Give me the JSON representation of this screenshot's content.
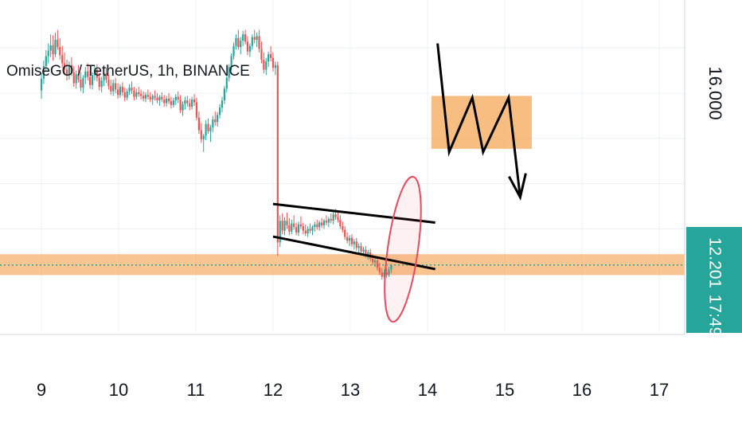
{
  "chart_data": {
    "type": "candlestick",
    "title": "OmiseGO / TetherUS, 1h, BINANCE",
    "x_ticks": [
      "9",
      "10",
      "11",
      "12",
      "13",
      "14",
      "15",
      "16",
      "17"
    ],
    "y_ticks": [
      "16.000"
    ],
    "x_range": [
      8.5,
      17.5
    ],
    "y_range": [
      11.0,
      17.4
    ],
    "last_price": "12.201",
    "countdown": "17:49",
    "colors": {
      "up": "#26a69a",
      "down": "#ef5350",
      "zone": "#f7b26b",
      "badge": "#26a69a",
      "ellipse": "#e84a5f",
      "lines": "#000000"
    },
    "candles": [
      [
        9.0,
        16.06,
        16.45,
        15.88,
        16.32
      ],
      [
        9.03,
        16.32,
        16.72,
        16.2,
        16.6
      ],
      [
        9.06,
        16.6,
        16.95,
        16.48,
        16.82
      ],
      [
        9.09,
        16.82,
        17.1,
        16.66,
        16.94
      ],
      [
        9.12,
        16.94,
        17.3,
        16.8,
        17.06
      ],
      [
        9.15,
        17.06,
        17.28,
        16.72,
        16.86
      ],
      [
        9.18,
        16.86,
        17.34,
        16.8,
        17.18
      ],
      [
        9.21,
        17.18,
        17.4,
        16.96,
        17.02
      ],
      [
        9.24,
        17.02,
        17.22,
        16.74,
        16.84
      ],
      [
        9.27,
        16.84,
        17.05,
        16.56,
        16.66
      ],
      [
        9.3,
        16.66,
        16.9,
        16.4,
        16.52
      ],
      [
        9.33,
        16.52,
        16.74,
        16.28,
        16.4
      ],
      [
        9.36,
        16.4,
        16.7,
        16.3,
        16.62
      ],
      [
        9.39,
        16.62,
        16.8,
        16.38,
        16.46
      ],
      [
        9.42,
        16.46,
        16.6,
        16.14,
        16.22
      ],
      [
        9.45,
        16.22,
        16.5,
        16.1,
        16.42
      ],
      [
        9.48,
        16.42,
        16.62,
        16.24,
        16.3
      ],
      [
        9.51,
        16.3,
        16.46,
        16.04,
        16.12
      ],
      [
        9.54,
        16.12,
        16.4,
        16.0,
        16.34
      ],
      [
        9.57,
        16.34,
        16.58,
        16.2,
        16.48
      ],
      [
        9.6,
        16.48,
        16.66,
        16.28,
        16.36
      ],
      [
        9.63,
        16.36,
        16.5,
        16.1,
        16.18
      ],
      [
        9.66,
        16.18,
        16.46,
        16.08,
        16.4
      ],
      [
        9.69,
        16.4,
        16.6,
        16.28,
        16.52
      ],
      [
        9.72,
        16.52,
        16.64,
        16.26,
        16.34
      ],
      [
        9.75,
        16.34,
        16.44,
        16.06,
        16.14
      ],
      [
        9.78,
        16.14,
        16.36,
        16.02,
        16.28
      ],
      [
        9.81,
        16.28,
        16.52,
        16.16,
        16.44
      ],
      [
        9.84,
        16.44,
        16.56,
        16.22,
        16.3
      ],
      [
        9.87,
        16.3,
        16.4,
        16.08,
        16.16
      ],
      [
        9.9,
        16.16,
        16.3,
        15.96,
        16.04
      ],
      [
        9.93,
        16.04,
        16.3,
        15.94,
        16.22
      ],
      [
        9.96,
        16.22,
        16.34,
        16.0,
        16.08
      ],
      [
        9.99,
        16.08,
        16.22,
        15.88,
        15.96
      ],
      [
        10.02,
        15.96,
        16.2,
        15.9,
        16.14
      ],
      [
        10.05,
        16.14,
        16.24,
        15.94,
        16.02
      ],
      [
        10.08,
        16.02,
        16.12,
        15.82,
        15.9
      ],
      [
        10.11,
        15.9,
        16.1,
        15.84,
        16.04
      ],
      [
        10.14,
        16.04,
        16.2,
        15.96,
        16.12
      ],
      [
        10.17,
        16.12,
        16.26,
        15.98,
        16.06
      ],
      [
        10.2,
        16.06,
        16.14,
        15.84,
        15.92
      ],
      [
        10.23,
        15.92,
        16.1,
        15.86,
        16.02
      ],
      [
        10.26,
        16.02,
        16.14,
        15.92,
        15.98
      ],
      [
        10.29,
        15.98,
        16.08,
        15.86,
        15.94
      ],
      [
        10.32,
        15.94,
        16.04,
        15.82,
        15.88
      ],
      [
        10.35,
        15.88,
        16.02,
        15.8,
        15.96
      ],
      [
        10.38,
        15.96,
        16.08,
        15.86,
        15.92
      ],
      [
        10.41,
        15.92,
        16.02,
        15.8,
        15.86
      ],
      [
        10.44,
        15.86,
        15.98,
        15.74,
        15.94
      ],
      [
        10.47,
        15.94,
        16.06,
        15.84,
        15.9
      ],
      [
        10.5,
        15.9,
        16.0,
        15.78,
        15.84
      ],
      [
        10.53,
        15.84,
        15.96,
        15.72,
        15.92
      ],
      [
        10.56,
        15.92,
        16.02,
        15.8,
        15.86
      ],
      [
        10.59,
        15.86,
        15.96,
        15.7,
        15.78
      ],
      [
        10.62,
        15.78,
        15.94,
        15.7,
        15.88
      ],
      [
        10.65,
        15.88,
        16.0,
        15.76,
        15.82
      ],
      [
        10.68,
        15.82,
        15.92,
        15.66,
        15.74
      ],
      [
        10.71,
        15.74,
        15.9,
        15.68,
        15.84
      ],
      [
        10.74,
        15.84,
        15.98,
        15.74,
        15.92
      ],
      [
        10.77,
        15.92,
        16.04,
        15.78,
        15.86
      ],
      [
        10.8,
        15.86,
        15.96,
        15.56,
        15.62
      ],
      [
        10.83,
        15.62,
        15.82,
        15.5,
        15.76
      ],
      [
        10.86,
        15.76,
        15.92,
        15.64,
        15.84
      ],
      [
        10.89,
        15.84,
        15.94,
        15.7,
        15.78
      ],
      [
        10.92,
        15.78,
        15.88,
        15.62,
        15.7
      ],
      [
        10.95,
        15.7,
        15.92,
        15.64,
        15.86
      ],
      [
        10.98,
        15.86,
        15.98,
        15.72,
        15.8
      ],
      [
        11.01,
        15.8,
        15.9,
        15.4,
        15.46
      ],
      [
        11.04,
        15.46,
        15.6,
        15.1,
        15.18
      ],
      [
        11.07,
        15.18,
        15.34,
        14.9,
        14.98
      ],
      [
        11.1,
        14.98,
        15.1,
        14.7,
        15.06
      ],
      [
        11.13,
        15.06,
        15.4,
        14.96,
        15.32
      ],
      [
        11.16,
        15.32,
        15.44,
        15.1,
        15.16
      ],
      [
        11.19,
        15.16,
        15.3,
        14.92,
        15.24
      ],
      [
        11.22,
        15.24,
        15.5,
        15.14,
        15.42
      ],
      [
        11.25,
        15.42,
        15.6,
        15.28,
        15.36
      ],
      [
        11.28,
        15.36,
        15.58,
        15.26,
        15.52
      ],
      [
        11.31,
        15.52,
        15.76,
        15.44,
        15.68
      ],
      [
        11.34,
        15.68,
        15.92,
        15.58,
        15.84
      ],
      [
        11.37,
        15.84,
        16.16,
        15.76,
        16.1
      ],
      [
        11.4,
        16.1,
        16.4,
        16.02,
        16.34
      ],
      [
        11.43,
        16.34,
        16.64,
        16.26,
        16.58
      ],
      [
        11.46,
        16.58,
        16.88,
        16.5,
        16.82
      ],
      [
        11.49,
        16.82,
        17.12,
        16.74,
        17.04
      ],
      [
        11.52,
        17.04,
        17.3,
        16.96,
        17.22
      ],
      [
        11.55,
        17.22,
        17.4,
        16.96,
        17.02
      ],
      [
        11.58,
        17.02,
        17.24,
        16.86,
        17.16
      ],
      [
        11.61,
        17.16,
        17.38,
        17.04,
        17.3
      ],
      [
        11.64,
        17.3,
        17.4,
        17.08,
        17.14
      ],
      [
        11.67,
        17.14,
        17.26,
        16.84,
        16.92
      ],
      [
        11.7,
        16.92,
        17.1,
        16.8,
        17.04
      ],
      [
        11.73,
        17.04,
        17.3,
        16.96,
        17.24
      ],
      [
        11.76,
        17.24,
        17.4,
        17.1,
        17.18
      ],
      [
        11.79,
        17.18,
        17.34,
        17.02,
        17.26
      ],
      [
        11.82,
        17.26,
        17.4,
        16.9,
        16.98
      ],
      [
        11.85,
        16.98,
        17.14,
        16.66,
        16.74
      ],
      [
        11.88,
        16.74,
        16.9,
        16.44,
        16.52
      ],
      [
        11.91,
        16.52,
        16.78,
        16.4,
        16.7
      ],
      [
        11.94,
        16.7,
        16.92,
        16.58,
        16.86
      ],
      [
        11.97,
        16.86,
        17.04,
        16.7,
        16.78
      ],
      [
        12.0,
        16.78,
        16.9,
        16.48,
        16.56
      ],
      [
        12.03,
        16.56,
        16.7,
        16.4,
        16.62
      ],
      [
        12.06,
        16.62,
        16.7,
        12.4,
        12.7
      ],
      [
        12.09,
        12.7,
        13.3,
        12.6,
        13.18
      ],
      [
        12.12,
        13.18,
        13.34,
        12.88,
        12.96
      ],
      [
        12.15,
        12.96,
        13.26,
        12.86,
        13.18
      ],
      [
        12.18,
        13.18,
        13.36,
        13.0,
        13.08
      ],
      [
        12.21,
        13.08,
        13.24,
        12.86,
        12.94
      ],
      [
        12.24,
        12.94,
        13.2,
        12.88,
        13.12
      ],
      [
        12.27,
        13.12,
        13.3,
        12.98,
        13.04
      ],
      [
        12.3,
        13.04,
        13.14,
        12.86,
        12.92
      ],
      [
        12.33,
        12.92,
        13.16,
        12.84,
        13.1
      ],
      [
        12.36,
        13.1,
        13.28,
        13.0,
        13.06
      ],
      [
        12.39,
        13.06,
        13.14,
        12.88,
        12.96
      ],
      [
        12.42,
        12.96,
        13.1,
        12.84,
        12.9
      ],
      [
        12.45,
        12.9,
        13.06,
        12.82,
        13.0
      ],
      [
        12.48,
        13.0,
        13.12,
        12.9,
        12.96
      ],
      [
        12.51,
        12.96,
        13.08,
        12.86,
        13.04
      ],
      [
        12.54,
        13.04,
        13.16,
        12.94,
        13.1
      ],
      [
        12.57,
        13.1,
        13.2,
        12.98,
        13.04
      ],
      [
        12.6,
        13.04,
        13.18,
        12.96,
        13.14
      ],
      [
        12.63,
        13.14,
        13.24,
        13.02,
        13.08
      ],
      [
        12.66,
        13.08,
        13.22,
        13.0,
        13.18
      ],
      [
        12.69,
        13.18,
        13.3,
        13.08,
        13.14
      ],
      [
        12.72,
        13.14,
        13.26,
        13.04,
        13.22
      ],
      [
        12.75,
        13.22,
        13.34,
        13.12,
        13.18
      ],
      [
        12.78,
        13.18,
        13.38,
        13.1,
        13.32
      ],
      [
        12.81,
        13.32,
        13.44,
        13.2,
        13.26
      ],
      [
        12.84,
        13.26,
        13.36,
        13.14,
        13.2
      ],
      [
        12.87,
        13.2,
        13.3,
        13.0,
        13.06
      ],
      [
        12.9,
        13.06,
        13.16,
        12.92,
        12.98
      ],
      [
        12.93,
        12.98,
        13.06,
        12.76,
        12.82
      ],
      [
        12.96,
        12.82,
        12.92,
        12.68,
        12.74
      ],
      [
        12.99,
        12.74,
        12.86,
        12.62,
        12.8
      ],
      [
        13.02,
        12.8,
        12.88,
        12.6,
        12.66
      ],
      [
        13.05,
        12.66,
        12.78,
        12.54,
        12.72
      ],
      [
        13.08,
        12.72,
        12.8,
        12.52,
        12.58
      ],
      [
        13.11,
        12.58,
        12.68,
        12.46,
        12.62
      ],
      [
        13.14,
        12.62,
        12.7,
        12.44,
        12.5
      ],
      [
        13.17,
        12.5,
        12.6,
        12.4,
        12.54
      ],
      [
        13.2,
        12.54,
        12.62,
        12.36,
        12.42
      ],
      [
        13.23,
        12.42,
        12.54,
        12.32,
        12.48
      ],
      [
        13.26,
        12.48,
        12.56,
        12.28,
        12.34
      ],
      [
        13.29,
        12.34,
        12.44,
        12.2,
        12.26
      ],
      [
        13.32,
        12.26,
        12.38,
        12.16,
        12.3
      ],
      [
        13.35,
        12.3,
        12.36,
        12.08,
        12.14
      ],
      [
        13.38,
        12.14,
        12.26,
        11.98,
        12.04
      ],
      [
        13.41,
        12.04,
        12.14,
        11.88,
        11.94
      ],
      [
        13.44,
        11.94,
        12.1,
        11.9,
        12.04
      ],
      [
        13.47,
        12.04,
        12.14,
        11.92,
        11.98
      ],
      [
        13.5,
        11.98,
        12.16,
        11.94,
        12.1
      ],
      [
        13.53,
        12.1,
        12.22,
        12.02,
        12.2
      ]
    ]
  }
}
